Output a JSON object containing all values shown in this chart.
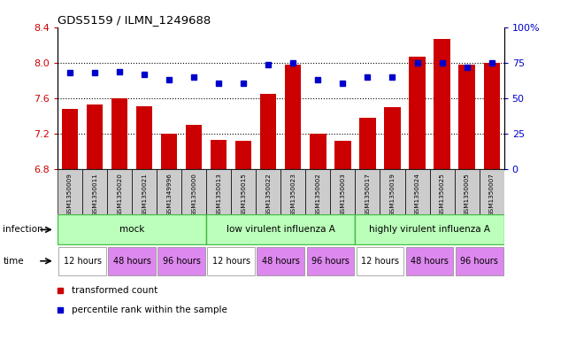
{
  "title": "GDS5159 / ILMN_1249688",
  "samples": [
    "GSM1350009",
    "GSM1350011",
    "GSM1350020",
    "GSM1350021",
    "GSM1349996",
    "GSM1350000",
    "GSM1350013",
    "GSM1350015",
    "GSM1350022",
    "GSM1350023",
    "GSM1350002",
    "GSM1350003",
    "GSM1350017",
    "GSM1350019",
    "GSM1350024",
    "GSM1350025",
    "GSM1350005",
    "GSM1350007"
  ],
  "bar_values": [
    7.48,
    7.53,
    7.6,
    7.51,
    7.2,
    7.3,
    7.13,
    7.12,
    7.65,
    7.98,
    7.2,
    7.12,
    7.38,
    7.5,
    8.07,
    8.27,
    7.98,
    8.0
  ],
  "dot_values": [
    68,
    68,
    69,
    67,
    63,
    65,
    61,
    61,
    74,
    75,
    63,
    61,
    65,
    65,
    75,
    75,
    72,
    75
  ],
  "ylim_left": [
    6.8,
    8.4
  ],
  "ylim_right": [
    0,
    100
  ],
  "yticks_left": [
    6.8,
    7.2,
    7.6,
    8.0,
    8.4
  ],
  "yticks_right": [
    0,
    25,
    50,
    75,
    100
  ],
  "ytick_labels_right": [
    "0",
    "25",
    "50",
    "75",
    "100%"
  ],
  "bar_color": "#cc0000",
  "dot_color": "#0000cc",
  "infection_groups": [
    {
      "label": "mock",
      "start": 0,
      "end": 6
    },
    {
      "label": "low virulent influenza A",
      "start": 6,
      "end": 12
    },
    {
      "label": "highly virulent influenza A",
      "start": 12,
      "end": 18
    }
  ],
  "infection_color": "#bbffbb",
  "infection_border_color": "#44bb44",
  "time_groups": [
    {
      "label": "12 hours",
      "start": 0,
      "end": 2,
      "color": "#ffffff"
    },
    {
      "label": "48 hours",
      "start": 2,
      "end": 4,
      "color": "#dd88ee"
    },
    {
      "label": "96 hours",
      "start": 4,
      "end": 6,
      "color": "#dd88ee"
    },
    {
      "label": "12 hours",
      "start": 6,
      "end": 8,
      "color": "#ffffff"
    },
    {
      "label": "48 hours",
      "start": 8,
      "end": 10,
      "color": "#dd88ee"
    },
    {
      "label": "96 hours",
      "start": 10,
      "end": 12,
      "color": "#dd88ee"
    },
    {
      "label": "12 hours",
      "start": 12,
      "end": 14,
      "color": "#ffffff"
    },
    {
      "label": "48 hours",
      "start": 14,
      "end": 16,
      "color": "#dd88ee"
    },
    {
      "label": "96 hours",
      "start": 16,
      "end": 18,
      "color": "#dd88ee"
    }
  ],
  "legend_bar_label": "transformed count",
  "legend_dot_label": "percentile rank within the sample",
  "infection_row_label": "infection",
  "time_row_label": "time",
  "bg_color": "#ffffff",
  "sample_bg_color": "#cccccc",
  "plot_bg_color": "#ffffff"
}
